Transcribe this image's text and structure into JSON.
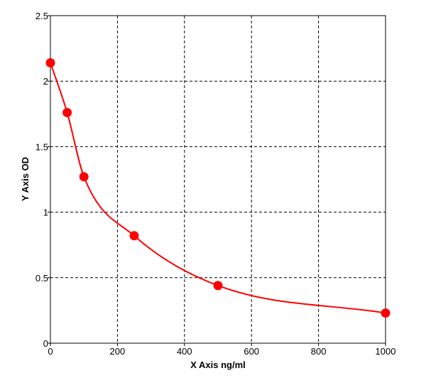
{
  "chart_data": {
    "type": "scatter",
    "xlabel": "X Axis ng/ml",
    "ylabel": "Y Axis OD",
    "xlim": [
      0,
      1000
    ],
    "ylim": [
      0,
      2.5
    ],
    "x_ticks": [
      0,
      200,
      400,
      600,
      800,
      1000
    ],
    "y_ticks": [
      0,
      0.5,
      1,
      1.5,
      2,
      2.5
    ],
    "x_tick_labels": [
      "0",
      "200",
      "400",
      "600",
      "800",
      "1000"
    ],
    "y_tick_labels": [
      "0",
      "0.5",
      "1",
      "1.5",
      "2",
      "2.5"
    ],
    "grid": true,
    "series": [
      {
        "x": [
          0,
          50,
          100,
          250,
          500,
          1000
        ],
        "y": [
          2.14,
          1.76,
          1.27,
          0.82,
          0.44,
          0.23
        ],
        "color": "#ff0000",
        "marker": "filled-circle",
        "fit_curve": "smooth"
      }
    ]
  }
}
